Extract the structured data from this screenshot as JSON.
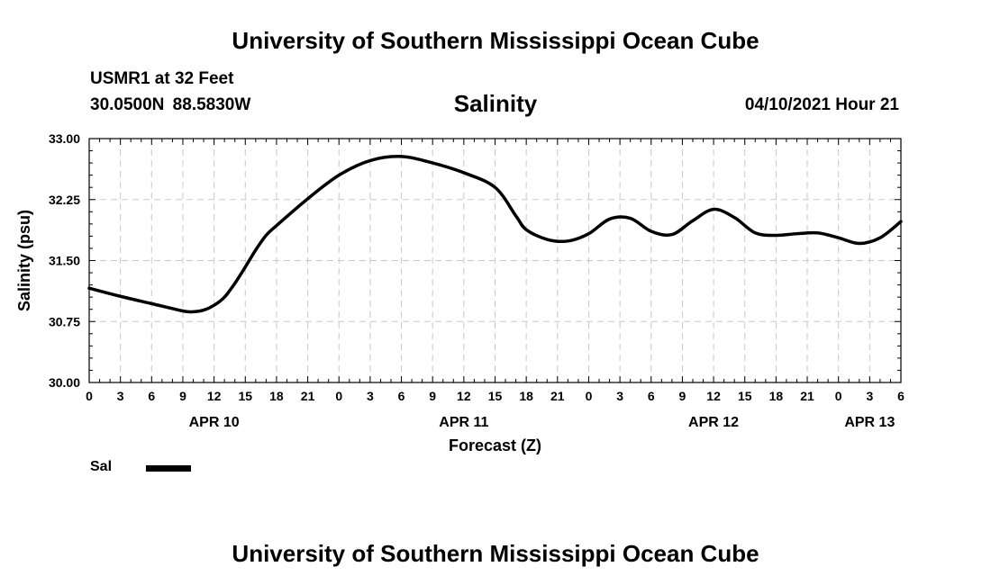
{
  "header": {
    "title": "University of Southern Mississippi Ocean Cube",
    "station": "USMR1 at 32 Feet",
    "coordinates": "30.0500N  88.5830W",
    "parameter": "Salinity",
    "datetime": "04/10/2021 Hour 21"
  },
  "footer": {
    "title": "University of Southern Mississippi Ocean Cube"
  },
  "legend": {
    "entries": [
      {
        "label": "Sal",
        "color": "#000000"
      }
    ]
  },
  "chart_data": {
    "type": "line",
    "title": "Salinity",
    "xlabel": "Forecast (Z)",
    "ylabel": "Salinity (psu)",
    "xlim": [
      0,
      78
    ],
    "ylim": [
      30.0,
      33.0
    ],
    "yticks": [
      {
        "value": 30.0,
        "label": "30.00"
      },
      {
        "value": 30.75,
        "label": "30.75"
      },
      {
        "value": 31.5,
        "label": "31.50"
      },
      {
        "value": 32.25,
        "label": "32.25"
      },
      {
        "value": 33.0,
        "label": "33.00"
      }
    ],
    "xticks": [
      {
        "value": 0,
        "label": "0"
      },
      {
        "value": 3,
        "label": "3"
      },
      {
        "value": 6,
        "label": "6"
      },
      {
        "value": 9,
        "label": "9"
      },
      {
        "value": 12,
        "label": "12"
      },
      {
        "value": 15,
        "label": "15"
      },
      {
        "value": 18,
        "label": "18"
      },
      {
        "value": 21,
        "label": "21"
      },
      {
        "value": 24,
        "label": "0"
      },
      {
        "value": 27,
        "label": "3"
      },
      {
        "value": 30,
        "label": "6"
      },
      {
        "value": 33,
        "label": "9"
      },
      {
        "value": 36,
        "label": "12"
      },
      {
        "value": 39,
        "label": "15"
      },
      {
        "value": 42,
        "label": "18"
      },
      {
        "value": 45,
        "label": "21"
      },
      {
        "value": 48,
        "label": "0"
      },
      {
        "value": 51,
        "label": "3"
      },
      {
        "value": 54,
        "label": "6"
      },
      {
        "value": 57,
        "label": "9"
      },
      {
        "value": 60,
        "label": "12"
      },
      {
        "value": 63,
        "label": "15"
      },
      {
        "value": 66,
        "label": "18"
      },
      {
        "value": 69,
        "label": "21"
      },
      {
        "value": 72,
        "label": "0"
      },
      {
        "value": 75,
        "label": "3"
      },
      {
        "value": 78,
        "label": "6"
      }
    ],
    "date_labels": [
      {
        "value": 12,
        "label": "APR 10"
      },
      {
        "value": 36,
        "label": "APR 11"
      },
      {
        "value": 60,
        "label": "APR 12"
      },
      {
        "value": 75,
        "label": "APR 13"
      }
    ],
    "grid": true,
    "series": [
      {
        "name": "Sal",
        "color": "#000000",
        "x": [
          0,
          3,
          6,
          9,
          10,
          11,
          12,
          13,
          14,
          15,
          16,
          17,
          18,
          21,
          24,
          27,
          30,
          33,
          36,
          39,
          41,
          42,
          44,
          46,
          48,
          50,
          52,
          54,
          56,
          58,
          60,
          62,
          64,
          66,
          68,
          70,
          72,
          74,
          76,
          78
        ],
        "values": [
          31.16,
          31.06,
          30.97,
          30.88,
          30.87,
          30.89,
          30.95,
          31.05,
          31.22,
          31.42,
          31.63,
          31.81,
          31.93,
          32.26,
          32.55,
          32.73,
          32.78,
          32.7,
          32.58,
          32.4,
          32.05,
          31.88,
          31.76,
          31.74,
          31.83,
          32.01,
          32.02,
          31.86,
          31.82,
          31.99,
          32.13,
          32.03,
          31.84,
          31.81,
          31.83,
          31.84,
          31.78,
          31.71,
          31.78,
          31.98
        ]
      }
    ]
  }
}
